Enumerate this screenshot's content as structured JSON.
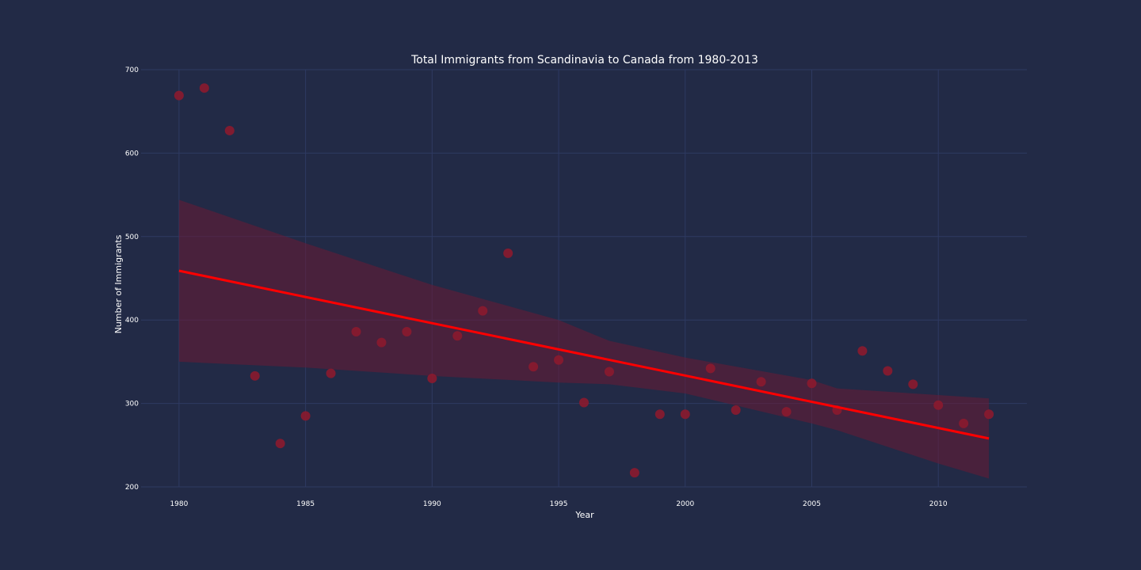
{
  "chart_data": {
    "type": "scatter",
    "title": "Total Immigrants from Scandinavia to Canada from 1980-2013",
    "xlabel": "Year",
    "ylabel": "Number of Immigrants",
    "xlim": [
      1978.5,
      2013.5
    ],
    "ylim": [
      200,
      700
    ],
    "x_ticks": [
      1980,
      1985,
      1990,
      1995,
      2000,
      2005,
      2010
    ],
    "y_ticks": [
      200,
      300,
      400,
      500,
      600,
      700
    ],
    "grid": true,
    "background_color": "#222a46",
    "grid_color": "#2e3a62",
    "point_color": "#8b1a2e",
    "line_color": "#ff0000",
    "band_color": "#6a1a34",
    "points": [
      {
        "x": 1980,
        "y": 669
      },
      {
        "x": 1981,
        "y": 678
      },
      {
        "x": 1982,
        "y": 627
      },
      {
        "x": 1983,
        "y": 333
      },
      {
        "x": 1984,
        "y": 252
      },
      {
        "x": 1985,
        "y": 285
      },
      {
        "x": 1986,
        "y": 336
      },
      {
        "x": 1987,
        "y": 386
      },
      {
        "x": 1988,
        "y": 373
      },
      {
        "x": 1989,
        "y": 386
      },
      {
        "x": 1990,
        "y": 330
      },
      {
        "x": 1991,
        "y": 381
      },
      {
        "x": 1992,
        "y": 411
      },
      {
        "x": 1993,
        "y": 480
      },
      {
        "x": 1994,
        "y": 344
      },
      {
        "x": 1995,
        "y": 352
      },
      {
        "x": 1996,
        "y": 301
      },
      {
        "x": 1997,
        "y": 338
      },
      {
        "x": 1998,
        "y": 217
      },
      {
        "x": 1999,
        "y": 287
      },
      {
        "x": 2000,
        "y": 287
      },
      {
        "x": 2001,
        "y": 342
      },
      {
        "x": 2002,
        "y": 292
      },
      {
        "x": 2003,
        "y": 326
      },
      {
        "x": 2004,
        "y": 290
      },
      {
        "x": 2005,
        "y": 324
      },
      {
        "x": 2006,
        "y": 292
      },
      {
        "x": 2007,
        "y": 363
      },
      {
        "x": 2008,
        "y": 339
      },
      {
        "x": 2009,
        "y": 323
      },
      {
        "x": 2010,
        "y": 298
      },
      {
        "x": 2011,
        "y": 276
      },
      {
        "x": 2012,
        "y": 287
      }
    ],
    "regression_line": [
      {
        "x": 1980,
        "y": 459
      },
      {
        "x": 2012,
        "y": 258
      }
    ],
    "confidence_band": [
      {
        "x": 1980,
        "lower": 350,
        "upper": 544
      },
      {
        "x": 1985,
        "lower": 343,
        "upper": 492
      },
      {
        "x": 1990,
        "lower": 333,
        "upper": 442
      },
      {
        "x": 1995,
        "lower": 325,
        "upper": 400
      },
      {
        "x": 1997,
        "lower": 323,
        "upper": 375
      },
      {
        "x": 2000,
        "lower": 312,
        "upper": 355
      },
      {
        "x": 2005,
        "lower": 276,
        "upper": 328
      },
      {
        "x": 2006,
        "lower": 268,
        "upper": 318
      },
      {
        "x": 2010,
        "lower": 228,
        "upper": 310
      },
      {
        "x": 2012,
        "lower": 210,
        "upper": 306
      }
    ]
  }
}
